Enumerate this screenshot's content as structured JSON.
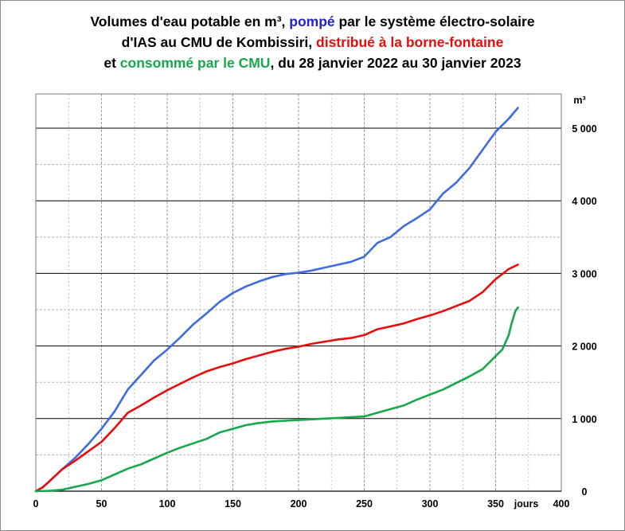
{
  "title": {
    "line1_a": "Volumes d'eau potable en m³, ",
    "line1_b": "pompé",
    "line1_c": " par le système électro-solaire",
    "line2_a": "d'IAS au CMU de Kombissiri, ",
    "line2_b": "distribué à la borne-fontaine",
    "line3_a": "et ",
    "line3_b": "consommé par le CMU",
    "line3_c": ", du 28 janvier 2022 au 30 janvier 2023"
  },
  "colors": {
    "pumped": "#3e6be0",
    "distributed": "#e80d0d",
    "consumed": "#16a84b"
  },
  "chart_data": {
    "type": "line",
    "xlabel": "jours",
    "ylabel": "m³",
    "xlim": [
      0,
      400
    ],
    "ylim": [
      0,
      5300
    ],
    "x_ticks": [
      0,
      50,
      100,
      150,
      200,
      250,
      300,
      350,
      400
    ],
    "x_tick_labels": [
      "0",
      "50",
      "100",
      "150",
      "200",
      "250",
      "300",
      "350",
      "400"
    ],
    "y_ticks": [
      0,
      1000,
      2000,
      3000,
      4000,
      5000
    ],
    "y_tick_labels": [
      "0",
      "1 000",
      "2 000",
      "3 000",
      "4 000",
      "5 000"
    ],
    "grid": true,
    "series": [
      {
        "color": "#3e6be0",
        "x": [
          0,
          5,
          10,
          20,
          30,
          40,
          50,
          60,
          70,
          80,
          90,
          100,
          110,
          120,
          130,
          140,
          150,
          160,
          170,
          180,
          190,
          200,
          210,
          220,
          230,
          240,
          250,
          260,
          270,
          280,
          290,
          300,
          310,
          320,
          330,
          340,
          350,
          360,
          367
        ],
        "y": [
          0,
          50,
          130,
          300,
          460,
          650,
          860,
          1100,
          1400,
          1600,
          1800,
          1950,
          2120,
          2300,
          2450,
          2610,
          2730,
          2820,
          2890,
          2950,
          2990,
          3010,
          3040,
          3080,
          3120,
          3160,
          3230,
          3420,
          3500,
          3650,
          3760,
          3880,
          4100,
          4250,
          4450,
          4700,
          4950,
          5130,
          5280
        ]
      },
      {
        "color": "#e80d0d",
        "x": [
          0,
          5,
          10,
          20,
          30,
          40,
          50,
          60,
          70,
          80,
          90,
          100,
          110,
          120,
          130,
          140,
          150,
          160,
          170,
          180,
          190,
          200,
          210,
          220,
          230,
          240,
          250,
          260,
          270,
          280,
          290,
          300,
          310,
          320,
          330,
          340,
          350,
          360,
          367
        ],
        "y": [
          0,
          50,
          130,
          300,
          420,
          550,
          680,
          870,
          1080,
          1180,
          1290,
          1390,
          1480,
          1570,
          1650,
          1710,
          1760,
          1820,
          1870,
          1920,
          1960,
          1990,
          2030,
          2060,
          2090,
          2110,
          2150,
          2230,
          2270,
          2310,
          2370,
          2420,
          2480,
          2550,
          2620,
          2740,
          2920,
          3060,
          3120
        ]
      },
      {
        "color": "#16a84b",
        "x": [
          0,
          10,
          20,
          30,
          40,
          50,
          60,
          70,
          80,
          90,
          100,
          110,
          120,
          130,
          140,
          150,
          160,
          170,
          180,
          190,
          200,
          210,
          220,
          230,
          240,
          250,
          260,
          270,
          280,
          290,
          300,
          310,
          320,
          330,
          340,
          350,
          355,
          360,
          362,
          365,
          367
        ],
        "y": [
          0,
          5,
          20,
          60,
          100,
          150,
          230,
          310,
          370,
          450,
          530,
          600,
          660,
          720,
          810,
          860,
          910,
          940,
          960,
          970,
          980,
          990,
          1000,
          1010,
          1020,
          1030,
          1080,
          1130,
          1180,
          1260,
          1330,
          1400,
          1490,
          1580,
          1680,
          1860,
          1950,
          2150,
          2300,
          2480,
          2530
        ]
      }
    ]
  }
}
